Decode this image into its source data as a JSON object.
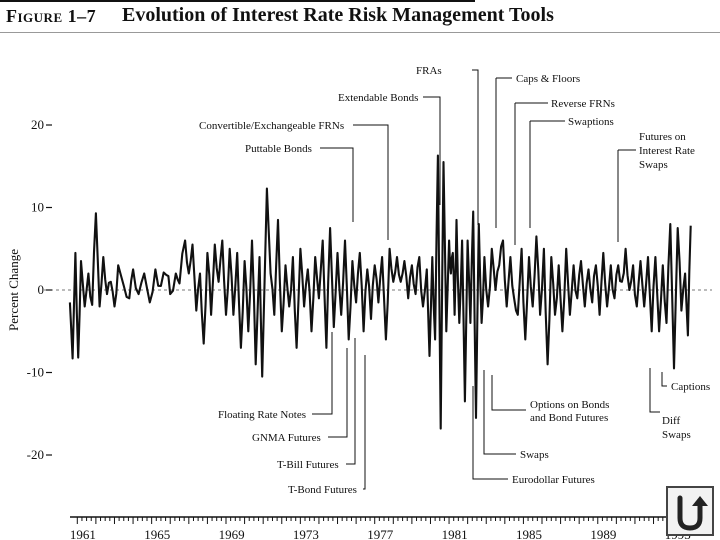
{
  "header": {
    "figure_label": "Figure 1–7",
    "title": "Evolution of Interest Rate Risk Management Tools"
  },
  "chart_data": {
    "type": "line",
    "title": "Evolution of Interest Rate Risk Management Tools",
    "ylabel": "Percent Change",
    "xlabel": "",
    "xlim": [
      1960.5,
      1994.5
    ],
    "ylim": [
      -20,
      20
    ],
    "yticks": [
      20,
      10,
      0,
      -10,
      -20
    ],
    "xticks": [
      "1961",
      "1965",
      "1969",
      "1973",
      "1977",
      "1981",
      "1985",
      "1989",
      "1993"
    ],
    "baseline": 0,
    "anchors": [
      [
        1960.6,
        -1.5
      ],
      [
        1960.75,
        -8.3
      ],
      [
        1960.9,
        4.5
      ],
      [
        1961.05,
        -8.2
      ],
      [
        1961.2,
        3.5
      ],
      [
        1961.4,
        -2.0
      ],
      [
        1961.6,
        2.0
      ],
      [
        1961.8,
        -1.8
      ],
      [
        1962.0,
        9.3
      ],
      [
        1962.2,
        -2.0
      ],
      [
        1962.4,
        4.0
      ],
      [
        1962.6,
        -0.5
      ],
      [
        1962.8,
        1.0
      ],
      [
        1963.0,
        -2.0
      ],
      [
        1963.2,
        3.0
      ],
      [
        1963.5,
        0.5
      ],
      [
        1963.8,
        -1.0
      ],
      [
        1964.0,
        2.5
      ],
      [
        1964.3,
        -0.5
      ],
      [
        1964.6,
        2.0
      ],
      [
        1964.9,
        -1.5
      ],
      [
        1965.2,
        2.5
      ],
      [
        1965.5,
        0.5
      ],
      [
        1965.8,
        1.8
      ],
      [
        1966.0,
        -0.5
      ],
      [
        1966.3,
        2.0
      ],
      [
        1966.5,
        0.8
      ],
      [
        1966.8,
        6.0
      ],
      [
        1967.0,
        2.0
      ],
      [
        1967.2,
        5.5
      ],
      [
        1967.4,
        -2.5
      ],
      [
        1967.6,
        2.0
      ],
      [
        1967.8,
        -6.5
      ],
      [
        1968.0,
        4.5
      ],
      [
        1968.2,
        -3.0
      ],
      [
        1968.4,
        5.5
      ],
      [
        1968.6,
        1.0
      ],
      [
        1968.8,
        6.0
      ],
      [
        1969.0,
        -3.0
      ],
      [
        1969.2,
        5.0
      ],
      [
        1969.4,
        -3.0
      ],
      [
        1969.6,
        4.5
      ],
      [
        1969.8,
        -7.0
      ],
      [
        1970.0,
        3.5
      ],
      [
        1970.2,
        -5.0
      ],
      [
        1970.4,
        6.0
      ],
      [
        1970.6,
        -9.0
      ],
      [
        1970.8,
        4.0
      ],
      [
        1970.95,
        -10.5
      ],
      [
        1971.2,
        12.3
      ],
      [
        1971.4,
        2.0
      ],
      [
        1971.6,
        -3.0
      ],
      [
        1971.8,
        8.5
      ],
      [
        1972.0,
        -5.0
      ],
      [
        1972.2,
        3.0
      ],
      [
        1972.4,
        -2.0
      ],
      [
        1972.6,
        4.0
      ],
      [
        1972.8,
        -7.0
      ],
      [
        1973.0,
        5.0
      ],
      [
        1973.2,
        -2.0
      ],
      [
        1973.4,
        2.5
      ],
      [
        1973.6,
        -5.0
      ],
      [
        1973.8,
        4.0
      ],
      [
        1974.0,
        -1.0
      ],
      [
        1974.2,
        6.0
      ],
      [
        1974.4,
        -7.0
      ],
      [
        1974.6,
        7.5
      ],
      [
        1974.8,
        -4.5
      ],
      [
        1975.0,
        4.5
      ],
      [
        1975.2,
        -3.0
      ],
      [
        1975.4,
        6.0
      ],
      [
        1975.6,
        -6.0
      ],
      [
        1975.8,
        3.5
      ],
      [
        1976.0,
        -1.5
      ],
      [
        1976.2,
        4.5
      ],
      [
        1976.4,
        -5.0
      ],
      [
        1976.6,
        2.5
      ],
      [
        1976.8,
        -3.5
      ],
      [
        1977.0,
        3.0
      ],
      [
        1977.2,
        -1.5
      ],
      [
        1977.4,
        4.0
      ],
      [
        1977.6,
        -6.0
      ],
      [
        1977.8,
        5.0
      ],
      [
        1978.0,
        1.0
      ],
      [
        1978.2,
        4.0
      ],
      [
        1978.4,
        1.0
      ],
      [
        1978.6,
        3.5
      ],
      [
        1978.8,
        -1.0
      ],
      [
        1979.0,
        3.0
      ],
      [
        1979.2,
        -0.5
      ],
      [
        1979.4,
        4.0
      ],
      [
        1979.6,
        -2.0
      ],
      [
        1979.8,
        2.5
      ],
      [
        1979.95,
        -8.0
      ],
      [
        1980.1,
        4.0
      ],
      [
        1980.25,
        -6.0
      ],
      [
        1980.4,
        16.3
      ],
      [
        1980.55,
        -16.8
      ],
      [
        1980.7,
        15.5
      ],
      [
        1980.85,
        -5.0
      ],
      [
        1981.0,
        6.0
      ],
      [
        1981.1,
        2.0
      ],
      [
        1981.2,
        4.5
      ],
      [
        1981.3,
        -3.0
      ],
      [
        1981.4,
        8.5
      ],
      [
        1981.55,
        -4.0
      ],
      [
        1981.7,
        6.0
      ],
      [
        1981.85,
        -13.5
      ],
      [
        1982.0,
        6.0
      ],
      [
        1982.15,
        -4.0
      ],
      [
        1982.3,
        9.5
      ],
      [
        1982.45,
        -15.5
      ],
      [
        1982.6,
        8.0
      ],
      [
        1982.75,
        -4.0
      ],
      [
        1982.9,
        4.0
      ],
      [
        1983.1,
        -2.0
      ],
      [
        1983.3,
        5.0
      ],
      [
        1983.5,
        0.0
      ],
      [
        1983.7,
        3.0
      ],
      [
        1983.9,
        6.0
      ],
      [
        1984.1,
        -2.0
      ],
      [
        1984.3,
        4.0
      ],
      [
        1984.5,
        -1.0
      ],
      [
        1984.7,
        -3.0
      ],
      [
        1984.9,
        5.0
      ],
      [
        1985.1,
        -6.0
      ],
      [
        1985.3,
        4.0
      ],
      [
        1985.5,
        -2.0
      ],
      [
        1985.7,
        6.5
      ],
      [
        1985.9,
        -3.0
      ],
      [
        1986.1,
        5.0
      ],
      [
        1986.3,
        -9.0
      ],
      [
        1986.5,
        4.0
      ],
      [
        1986.7,
        -3.0
      ],
      [
        1986.9,
        3.0
      ],
      [
        1987.1,
        -5.0
      ],
      [
        1987.3,
        5.0
      ],
      [
        1987.5,
        -3.0
      ],
      [
        1987.7,
        3.0
      ],
      [
        1987.9,
        -1.0
      ],
      [
        1988.1,
        3.5
      ],
      [
        1988.3,
        -2.0
      ],
      [
        1988.5,
        2.5
      ],
      [
        1988.7,
        -1.5
      ],
      [
        1988.9,
        3.0
      ],
      [
        1989.1,
        -3.0
      ],
      [
        1989.3,
        4.5
      ],
      [
        1989.5,
        -2.0
      ],
      [
        1989.7,
        3.0
      ],
      [
        1989.9,
        -1.0
      ],
      [
        1990.1,
        3.0
      ],
      [
        1990.3,
        1.0
      ],
      [
        1990.5,
        5.0
      ],
      [
        1990.7,
        0.0
      ],
      [
        1990.9,
        3.0
      ],
      [
        1991.1,
        -2.0
      ],
      [
        1991.3,
        3.5
      ],
      [
        1991.5,
        -2.0
      ],
      [
        1991.7,
        4.0
      ],
      [
        1991.9,
        -5.0
      ],
      [
        1992.1,
        4.0
      ],
      [
        1992.3,
        -5.0
      ],
      [
        1992.5,
        3.0
      ],
      [
        1992.7,
        -4.0
      ],
      [
        1992.9,
        8.0
      ],
      [
        1993.1,
        -9.5
      ],
      [
        1993.3,
        7.5
      ],
      [
        1993.5,
        -2.5
      ],
      [
        1993.7,
        2.0
      ],
      [
        1993.85,
        -5.5
      ],
      [
        1994.0,
        7.8
      ]
    ],
    "annotations": {
      "above": [
        {
          "text": "FRAs",
          "x": 1983.3,
          "tip_value": 7
        },
        {
          "text": "Caps & Floors",
          "x": 1984.1,
          "tip_value": 6
        },
        {
          "text": "Extendable Bonds",
          "x": 1981.3,
          "tip_value": 10
        },
        {
          "text": "Reverse FRNs",
          "x": 1985.1,
          "tip_value": 5
        },
        {
          "text": "Swaptions",
          "x": 1985.6,
          "tip_value": 6
        },
        {
          "text": "Convertible/Exchangeable FRNs",
          "x": 1978.0,
          "tip_value": 6
        },
        {
          "text": "Puttable Bonds",
          "x": 1975.8,
          "tip_value": 8
        },
        {
          "text": "Futures on",
          "x": 1991.1,
          "tip_value": 5
        },
        {
          "text": "Interest Rate",
          "x": null,
          "tip_value": null
        },
        {
          "text": "Swaps",
          "x": null,
          "tip_value": null
        }
      ],
      "below": [
        {
          "text": "Floating Rate Notes",
          "x": 1975.0,
          "tip_value": -5
        },
        {
          "text": "GNMA Futures",
          "x": 1975.8,
          "tip_value": -7
        },
        {
          "text": "T-Bill Futures",
          "x": 1976.5,
          "tip_value": -6
        },
        {
          "text": "T-Bond Futures",
          "x": 1977.5,
          "tip_value": -6
        },
        {
          "text": "Swaps",
          "x": 1983.6,
          "tip_value": -11
        },
        {
          "text": "Eurodollar Futures",
          "x": 1983.0,
          "tip_value": -14
        },
        {
          "text": "Options on Bonds",
          "x": 1984.3,
          "tip_value": -10
        },
        {
          "text": "and Bond Futures",
          "x": null,
          "tip_value": null
        },
        {
          "text": "Captions",
          "x": 1993.6,
          "tip_value": -9
        },
        {
          "text": "Diff",
          "x": 1993.3,
          "tip_value": -8
        },
        {
          "text": "Swaps",
          "x": null,
          "tip_value": null
        }
      ]
    }
  },
  "nav": {
    "back_icon": "u-turn-arrow-icon"
  }
}
